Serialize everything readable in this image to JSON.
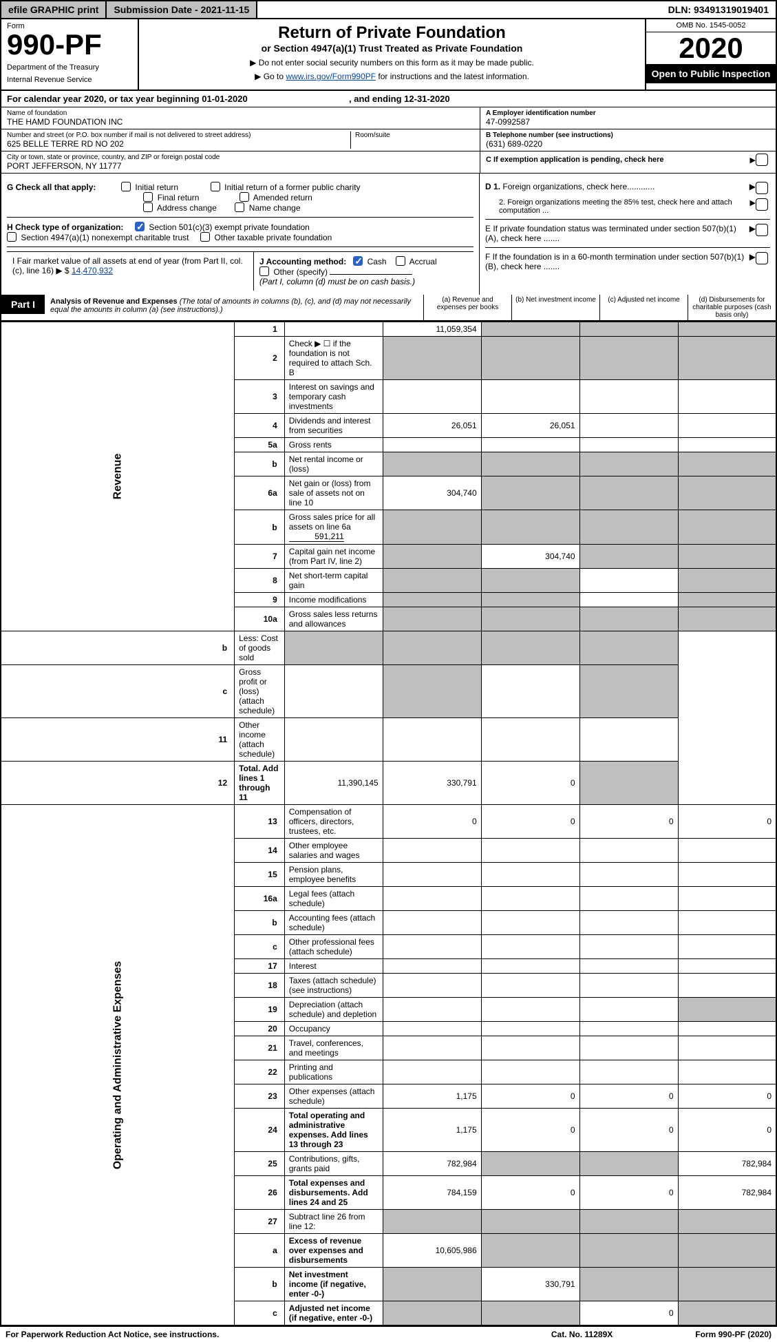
{
  "topbar": {
    "print": "efile GRAPHIC print",
    "submission": "Submission Date - 2021-11-15",
    "dln": "DLN: 93491319019401"
  },
  "header": {
    "form_word": "Form",
    "form_number": "990-PF",
    "dept1": "Department of the Treasury",
    "dept2": "Internal Revenue Service",
    "title": "Return of Private Foundation",
    "subtitle": "or Section 4947(a)(1) Trust Treated as Private Foundation",
    "note1": "▶ Do not enter social security numbers on this form as it may be made public.",
    "note2_pre": "▶ Go to ",
    "note2_link": "www.irs.gov/Form990PF",
    "note2_post": " for instructions and the latest information.",
    "omb": "OMB No. 1545-0052",
    "year": "2020",
    "open": "Open to Public Inspection"
  },
  "calrow": {
    "text_a": "For calendar year 2020, or tax year beginning 01-01-2020",
    "text_b": ", and ending 12-31-2020"
  },
  "id": {
    "name_lbl": "Name of foundation",
    "name_val": "THE HAMD FOUNDATION INC",
    "addr_lbl": "Number and street (or P.O. box number if mail is not delivered to street address)",
    "addr_val": "625 BELLE TERRE RD NO 202",
    "room_lbl": "Room/suite",
    "city_lbl": "City or town, state or province, country, and ZIP or foreign postal code",
    "city_val": "PORT JEFFERSON, NY  11777",
    "a_lbl": "A Employer identification number",
    "a_val": "47-0992587",
    "b_lbl": "B Telephone number (see instructions)",
    "b_val": "(631) 689-0220",
    "c_lbl": "C If exemption application is pending, check here"
  },
  "checks": {
    "g_label": "G Check all that apply:",
    "g_opts": [
      "Initial return",
      "Final return",
      "Address change",
      "Initial return of a former public charity",
      "Amended return",
      "Name change"
    ],
    "h_label": "H Check type of organization:",
    "h1": "Section 501(c)(3) exempt private foundation",
    "h2": "Section 4947(a)(1) nonexempt charitable trust",
    "h3": "Other taxable private foundation",
    "i_label": "I Fair market value of all assets at end of year (from Part II, col. (c), line 16)",
    "i_val": "14,470,932",
    "j_label": "J Accounting method:",
    "j_cash": "Cash",
    "j_accr": "Accrual",
    "j_other": "Other (specify)",
    "j_note": "(Part I, column (d) must be on cash basis.)",
    "d1": "D 1. Foreign organizations, check here............",
    "d2": "2. Foreign organizations meeting the 85% test, check here and attach computation ...",
    "e": "E  If private foundation status was terminated under section 507(b)(1)(A), check here .......",
    "f": "F  If the foundation is in a 60-month termination under section 507(b)(1)(B), check here ......."
  },
  "part1": {
    "badge": "Part I",
    "title": "Analysis of Revenue and Expenses",
    "title_note": " (The total of amounts in columns (b), (c), and (d) may not necessarily equal the amounts in column (a) (see instructions).)",
    "col_a": "(a)  Revenue and expenses per books",
    "col_b": "(b)  Net investment income",
    "col_c": "(c)  Adjusted net income",
    "col_d": "(d)  Disbursements for charitable purposes (cash basis only)"
  },
  "side": {
    "rev": "Revenue",
    "op": "Operating and Administrative Expenses"
  },
  "rows": {
    "1": {
      "n": "1",
      "d": "",
      "a": "11,059,354",
      "b": "",
      "c": "",
      "grey": [
        "b",
        "c",
        "d"
      ]
    },
    "2": {
      "n": "2",
      "d": "Check ▶ ☐ if the foundation is not required to attach Sch. B",
      "grey": [
        "a",
        "b",
        "c",
        "d"
      ]
    },
    "3": {
      "n": "3",
      "d": "Interest on savings and temporary cash investments"
    },
    "4": {
      "n": "4",
      "d": "Dividends and interest from securities",
      "a": "26,051",
      "b": "26,051"
    },
    "5a": {
      "n": "5a",
      "d": "Gross rents"
    },
    "5b": {
      "n": "b",
      "d": "Net rental income or (loss)",
      "grey": [
        "a",
        "b",
        "c",
        "d"
      ]
    },
    "6a": {
      "n": "6a",
      "d": "Net gain or (loss) from sale of assets not on line 10",
      "a": "304,740",
      "grey": [
        "b",
        "c",
        "d"
      ]
    },
    "6b": {
      "n": "b",
      "d": "Gross sales price for all assets on line 6a",
      "inline": "591,211",
      "grey": [
        "a",
        "b",
        "c",
        "d"
      ]
    },
    "7": {
      "n": "7",
      "d": "Capital gain net income (from Part IV, line 2)",
      "b": "304,740",
      "grey": [
        "a",
        "c",
        "d"
      ]
    },
    "8": {
      "n": "8",
      "d": "Net short-term capital gain",
      "grey": [
        "a",
        "b",
        "d"
      ]
    },
    "9": {
      "n": "9",
      "d": "Income modifications",
      "grey": [
        "a",
        "b",
        "d"
      ]
    },
    "10a": {
      "n": "10a",
      "d": "Gross sales less returns and allowances",
      "grey": [
        "a",
        "b",
        "c",
        "d"
      ]
    },
    "10b": {
      "n": "b",
      "d": "Less: Cost of goods sold",
      "grey": [
        "a",
        "b",
        "c",
        "d"
      ]
    },
    "10c": {
      "n": "c",
      "d": "Gross profit or (loss) (attach schedule)",
      "grey": [
        "b",
        "d"
      ]
    },
    "11": {
      "n": "11",
      "d": "Other income (attach schedule)"
    },
    "12": {
      "n": "12",
      "d": "Total. Add lines 1 through 11",
      "a": "11,390,145",
      "b": "330,791",
      "c": "0",
      "grey": [
        "d"
      ],
      "bold": true
    },
    "13": {
      "n": "13",
      "d": "Compensation of officers, directors, trustees, etc.",
      "a": "0",
      "b": "0",
      "c": "0",
      "dd": "0"
    },
    "14": {
      "n": "14",
      "d": "Other employee salaries and wages"
    },
    "15": {
      "n": "15",
      "d": "Pension plans, employee benefits"
    },
    "16a": {
      "n": "16a",
      "d": "Legal fees (attach schedule)"
    },
    "16b": {
      "n": "b",
      "d": "Accounting fees (attach schedule)"
    },
    "16c": {
      "n": "c",
      "d": "Other professional fees (attach schedule)"
    },
    "17": {
      "n": "17",
      "d": "Interest"
    },
    "18": {
      "n": "18",
      "d": "Taxes (attach schedule) (see instructions)"
    },
    "19": {
      "n": "19",
      "d": "Depreciation (attach schedule) and depletion",
      "grey": [
        "d"
      ]
    },
    "20": {
      "n": "20",
      "d": "Occupancy"
    },
    "21": {
      "n": "21",
      "d": "Travel, conferences, and meetings"
    },
    "22": {
      "n": "22",
      "d": "Printing and publications"
    },
    "23": {
      "n": "23",
      "d": "Other expenses (attach schedule)",
      "a": "1,175",
      "b": "0",
      "c": "0",
      "dd": "0"
    },
    "24": {
      "n": "24",
      "d": "Total operating and administrative expenses. Add lines 13 through 23",
      "a": "1,175",
      "b": "0",
      "c": "0",
      "dd": "0",
      "bold": true
    },
    "25": {
      "n": "25",
      "d": "Contributions, gifts, grants paid",
      "a": "782,984",
      "dd": "782,984",
      "grey": [
        "b",
        "c"
      ]
    },
    "26": {
      "n": "26",
      "d": "Total expenses and disbursements. Add lines 24 and 25",
      "a": "784,159",
      "b": "0",
      "c": "0",
      "dd": "782,984",
      "bold": true
    },
    "27": {
      "n": "27",
      "d": "Subtract line 26 from line 12:",
      "grey": [
        "a",
        "b",
        "c",
        "d"
      ]
    },
    "27a": {
      "n": "a",
      "d": "Excess of revenue over expenses and disbursements",
      "a": "10,605,986",
      "grey": [
        "b",
        "c",
        "d"
      ],
      "bold": true
    },
    "27b": {
      "n": "b",
      "d": "Net investment income (if negative, enter -0-)",
      "b": "330,791",
      "grey": [
        "a",
        "c",
        "d"
      ],
      "bold": true
    },
    "27c": {
      "n": "c",
      "d": "Adjusted net income (if negative, enter -0-)",
      "c": "0",
      "grey": [
        "a",
        "b",
        "d"
      ],
      "bold": true
    }
  },
  "footer": {
    "left": "For Paperwork Reduction Act Notice, see instructions.",
    "mid": "Cat. No. 11289X",
    "right": "Form 990-PF (2020)"
  }
}
